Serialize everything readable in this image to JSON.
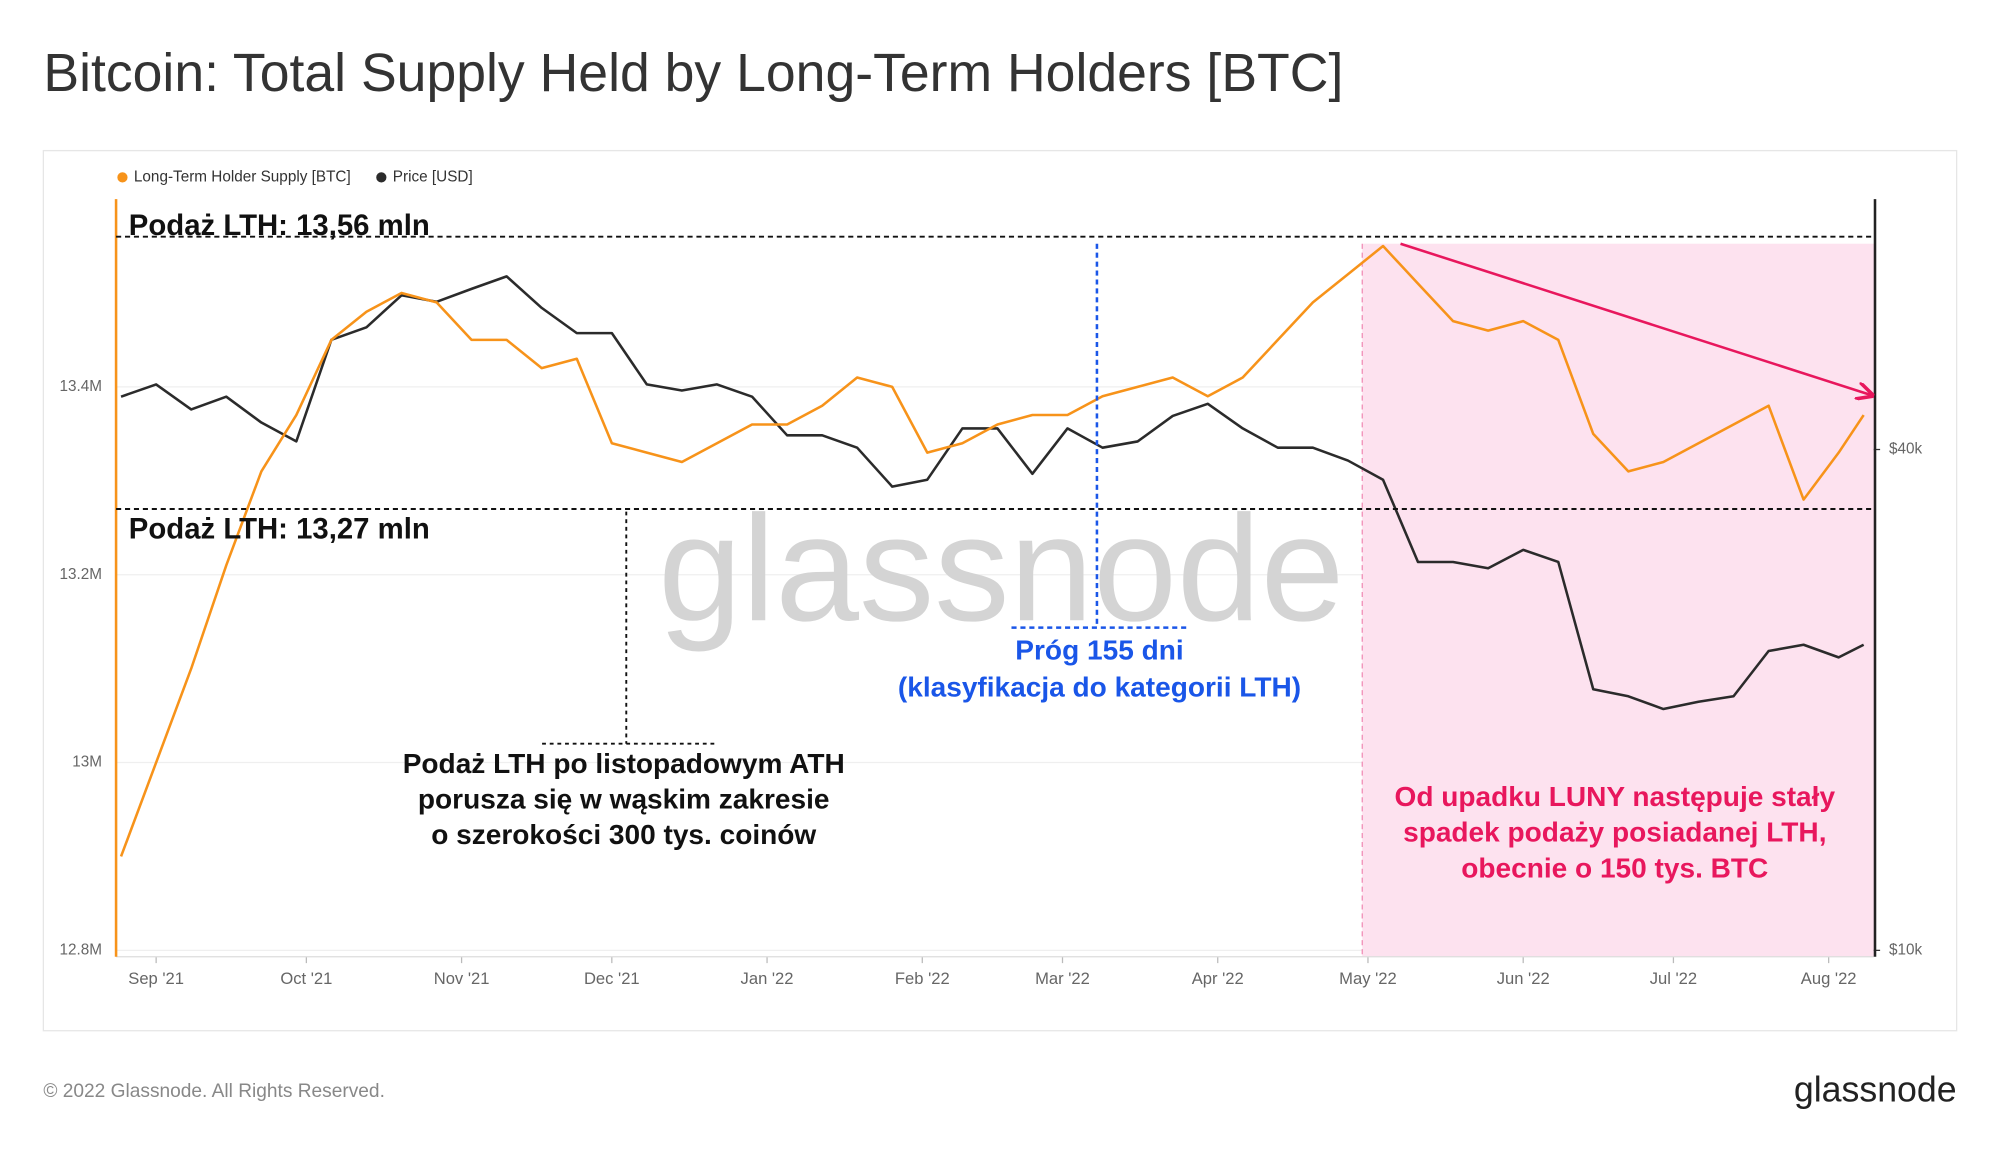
{
  "title": "Bitcoin: Total Supply Held by Long-Term Holders [BTC]",
  "footer": "© 2022 Glassnode. All Rights Reserved.",
  "logo": "glassnode",
  "watermark": "glassnode",
  "chart_data": {
    "type": "line",
    "x": [
      "2021-08-25",
      "2021-09-01",
      "2021-09-08",
      "2021-09-15",
      "2021-09-22",
      "2021-09-29",
      "2021-10-06",
      "2021-10-13",
      "2021-10-20",
      "2021-10-27",
      "2021-11-03",
      "2021-11-10",
      "2021-11-17",
      "2021-11-24",
      "2021-12-01",
      "2021-12-08",
      "2021-12-15",
      "2021-12-22",
      "2021-12-29",
      "2022-01-05",
      "2022-01-12",
      "2022-01-19",
      "2022-01-26",
      "2022-02-02",
      "2022-02-09",
      "2022-02-16",
      "2022-02-23",
      "2022-03-02",
      "2022-03-09",
      "2022-03-16",
      "2022-03-23",
      "2022-03-30",
      "2022-04-06",
      "2022-04-13",
      "2022-04-20",
      "2022-04-27",
      "2022-05-04",
      "2022-05-11",
      "2022-05-18",
      "2022-05-25",
      "2022-06-01",
      "2022-06-08",
      "2022-06-15",
      "2022-06-22",
      "2022-06-29",
      "2022-07-06",
      "2022-07-13",
      "2022-07-20",
      "2022-07-27",
      "2022-08-03",
      "2022-08-08"
    ],
    "xlim": [
      "2021-08-24",
      "2022-08-10"
    ],
    "xticks": [
      {
        "value": "2021-09-01",
        "label": "Sep '21"
      },
      {
        "value": "2021-10-01",
        "label": "Oct '21"
      },
      {
        "value": "2021-11-01",
        "label": "Nov '21"
      },
      {
        "value": "2021-12-01",
        "label": "Dec '21"
      },
      {
        "value": "2022-01-01",
        "label": "Jan '22"
      },
      {
        "value": "2022-02-01",
        "label": "Feb '22"
      },
      {
        "value": "2022-03-01",
        "label": "Mar '22"
      },
      {
        "value": "2022-04-01",
        "label": "Apr '22"
      },
      {
        "value": "2022-05-01",
        "label": "May '22"
      },
      {
        "value": "2022-06-01",
        "label": "Jun '22"
      },
      {
        "value": "2022-07-01",
        "label": "Jul '22"
      },
      {
        "value": "2022-08-01",
        "label": "Aug '22"
      }
    ],
    "ylim": [
      12.8,
      13.6
    ],
    "yticks": [
      {
        "value": 12.8,
        "label": "12.8M"
      },
      {
        "value": 13,
        "label": "13M"
      },
      {
        "value": 13.2,
        "label": "13.2M"
      },
      {
        "value": 13.4,
        "label": "13.4M"
      }
    ],
    "y2lim": [
      10000,
      80000
    ],
    "y2log": true,
    "y2ticks": [
      {
        "value": 10000,
        "label": "$10k"
      },
      {
        "value": 40000,
        "label": "$40k"
      }
    ],
    "grid": true,
    "series": [
      {
        "name": "Long-Term Holder Supply [BTC]",
        "color": "#f7931a",
        "values": [
          12.9,
          13.0,
          13.1,
          13.21,
          13.31,
          13.37,
          13.45,
          13.48,
          13.5,
          13.49,
          13.45,
          13.45,
          13.42,
          13.43,
          13.34,
          13.33,
          13.32,
          13.34,
          13.36,
          13.36,
          13.38,
          13.41,
          13.4,
          13.33,
          13.34,
          13.36,
          13.37,
          13.37,
          13.39,
          13.4,
          13.41,
          13.39,
          13.41,
          13.45,
          13.49,
          13.52,
          13.55,
          13.51,
          13.47,
          13.46,
          13.47,
          13.45,
          13.35,
          13.31,
          13.32,
          13.34,
          13.36,
          13.38,
          13.28,
          13.33,
          13.37
        ]
      },
      {
        "name": "Price [USD]",
        "color": "#2b2b2b",
        "axis": "y2",
        "values": [
          46300,
          47900,
          44700,
          46300,
          43100,
          40900,
          54200,
          56100,
          61300,
          60200,
          62400,
          64600,
          59200,
          55200,
          55200,
          47900,
          47100,
          47900,
          46300,
          41600,
          41600,
          40200,
          36100,
          36800,
          42400,
          42400,
          37400,
          42400,
          40200,
          40900,
          43900,
          45400,
          42400,
          40200,
          40200,
          38800,
          36800,
          29300,
          29300,
          28800,
          30300,
          29300,
          20600,
          20200,
          19500,
          19900,
          20200,
          22900,
          23300,
          22500,
          23300
        ]
      }
    ],
    "reference_lines": [
      {
        "value": 13.56,
        "label": "Podaż LTH: 13,56 mln"
      },
      {
        "value": 13.27,
        "label": "Podaż LTH: 13,27 mln"
      }
    ],
    "annotations": {
      "threshold": [
        "Próg 155 dni",
        "(klasyfikacja do kategorii LTH)"
      ],
      "range": [
        "Podaż LTH po listopadowym ATH",
        "porusza się w wąskim zakresie",
        "o szerokości 300 tys. coinów"
      ],
      "luna": [
        "Od upadku LUNY następuje stały",
        "spadek podaży posiadanej LTH,",
        "obecnie o 150 tys. BTC"
      ]
    }
  }
}
